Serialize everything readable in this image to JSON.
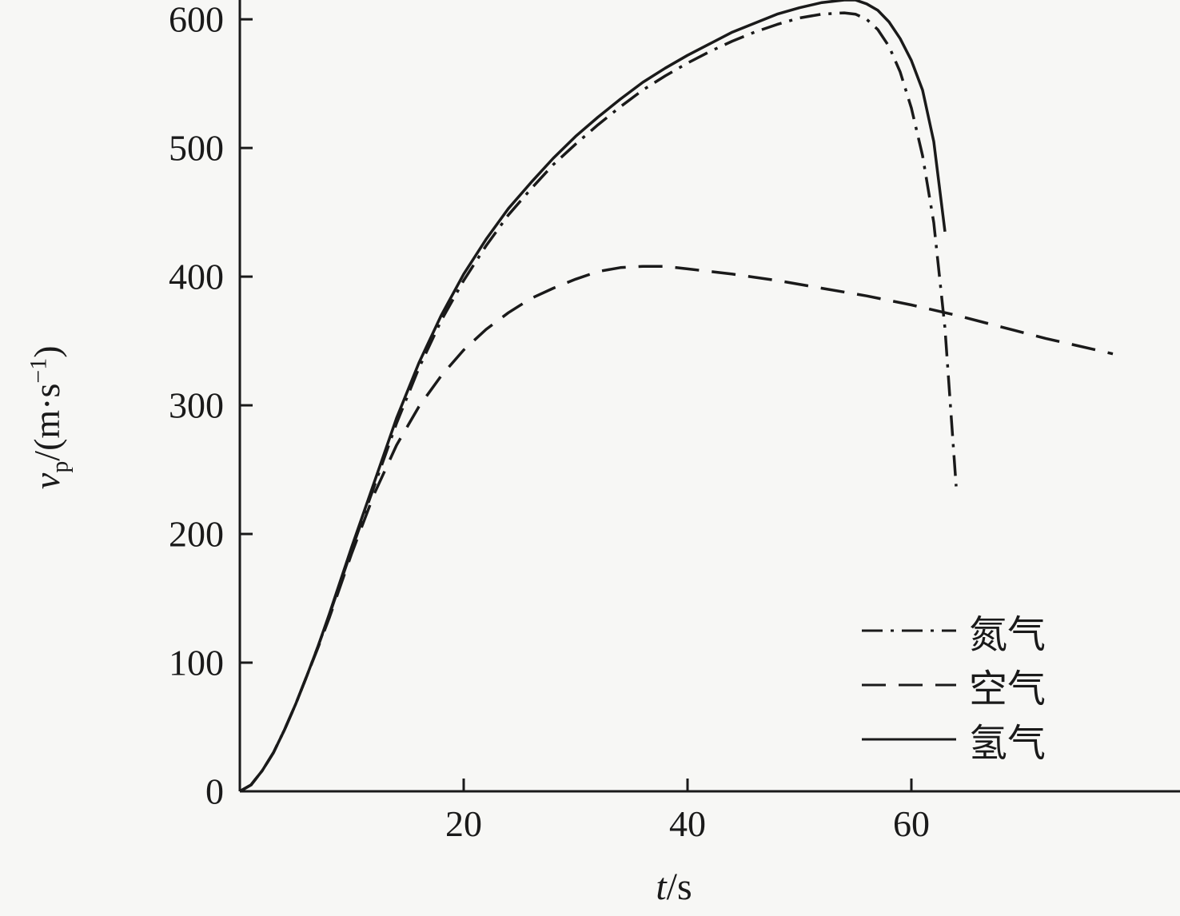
{
  "figure": {
    "background": "#f7f7f5",
    "line_color": "#1a1a1a"
  },
  "axes": {
    "x_label": {
      "var": "t",
      "rest": "/s"
    },
    "y_label": {
      "var": "v",
      "sub": "p",
      "mid": "/(m·s",
      "sup": "−1",
      "end": ")"
    }
  },
  "chart_data": {
    "type": "line",
    "title": "",
    "xlabel": "t/s",
    "ylabel": "v_p/(m·s^-1)",
    "xlim": [
      0,
      84
    ],
    "ylim": [
      0,
      615
    ],
    "x_ticks": [
      20,
      40,
      60
    ],
    "y_ticks": [
      0,
      100,
      200,
      300,
      400,
      500,
      600
    ],
    "grid": false,
    "legend_position": "lower right",
    "series": [
      {
        "name": "nitrogen",
        "label": "氮气",
        "style": "dashdot",
        "points": [
          [
            0,
            0
          ],
          [
            1,
            5
          ],
          [
            2,
            16
          ],
          [
            3,
            30
          ],
          [
            4,
            48
          ],
          [
            5,
            68
          ],
          [
            6,
            90
          ],
          [
            7,
            113
          ],
          [
            8,
            137
          ],
          [
            10,
            188
          ],
          [
            12,
            237
          ],
          [
            14,
            286
          ],
          [
            16,
            329
          ],
          [
            18,
            366
          ],
          [
            20,
            397
          ],
          [
            22,
            424
          ],
          [
            24,
            448
          ],
          [
            26,
            468
          ],
          [
            28,
            487
          ],
          [
            30,
            503
          ],
          [
            32,
            518
          ],
          [
            34,
            532
          ],
          [
            36,
            545
          ],
          [
            38,
            556
          ],
          [
            40,
            566
          ],
          [
            42,
            575
          ],
          [
            44,
            583
          ],
          [
            46,
            590
          ],
          [
            48,
            596
          ],
          [
            50,
            601
          ],
          [
            52,
            604
          ],
          [
            54,
            605
          ],
          [
            55,
            604
          ],
          [
            56,
            600
          ],
          [
            57,
            592
          ],
          [
            58,
            579
          ],
          [
            59,
            559
          ],
          [
            60,
            531
          ],
          [
            61,
            494
          ],
          [
            62,
            442
          ],
          [
            63,
            360
          ],
          [
            64,
            237
          ]
        ]
      },
      {
        "name": "air",
        "label": "空气",
        "style": "dashed",
        "points": [
          [
            0,
            0
          ],
          [
            1,
            5
          ],
          [
            2,
            16
          ],
          [
            3,
            30
          ],
          [
            4,
            48
          ],
          [
            5,
            68
          ],
          [
            6,
            90
          ],
          [
            7,
            112
          ],
          [
            8,
            135
          ],
          [
            10,
            185
          ],
          [
            12,
            231
          ],
          [
            14,
            269
          ],
          [
            16,
            299
          ],
          [
            18,
            323
          ],
          [
            20,
            343
          ],
          [
            22,
            359
          ],
          [
            24,
            372
          ],
          [
            26,
            383
          ],
          [
            28,
            391
          ],
          [
            30,
            398
          ],
          [
            32,
            404
          ],
          [
            34,
            407
          ],
          [
            36,
            408
          ],
          [
            38,
            408
          ],
          [
            40,
            406
          ],
          [
            44,
            402
          ],
          [
            48,
            397
          ],
          [
            52,
            391
          ],
          [
            56,
            385
          ],
          [
            60,
            378
          ],
          [
            64,
            370
          ],
          [
            68,
            361
          ],
          [
            72,
            352
          ],
          [
            76,
            344
          ],
          [
            78,
            340
          ]
        ]
      },
      {
        "name": "hydrogen",
        "label": "氢气",
        "style": "solid",
        "points": [
          [
            0,
            0
          ],
          [
            1,
            5
          ],
          [
            2,
            16
          ],
          [
            3,
            30
          ],
          [
            4,
            48
          ],
          [
            5,
            68
          ],
          [
            6,
            90
          ],
          [
            7,
            113
          ],
          [
            8,
            138
          ],
          [
            10,
            190
          ],
          [
            12,
            240
          ],
          [
            14,
            290
          ],
          [
            16,
            333
          ],
          [
            18,
            370
          ],
          [
            20,
            402
          ],
          [
            22,
            429
          ],
          [
            24,
            453
          ],
          [
            26,
            473
          ],
          [
            28,
            492
          ],
          [
            30,
            509
          ],
          [
            32,
            524
          ],
          [
            34,
            538
          ],
          [
            36,
            551
          ],
          [
            38,
            562
          ],
          [
            40,
            572
          ],
          [
            42,
            581
          ],
          [
            44,
            590
          ],
          [
            46,
            597
          ],
          [
            48,
            604
          ],
          [
            50,
            609
          ],
          [
            52,
            613
          ],
          [
            54,
            615
          ],
          [
            55,
            615
          ],
          [
            56,
            612
          ],
          [
            57,
            607
          ],
          [
            58,
            598
          ],
          [
            59,
            585
          ],
          [
            60,
            568
          ],
          [
            61,
            545
          ],
          [
            62,
            505
          ],
          [
            63,
            435
          ]
        ]
      }
    ]
  }
}
